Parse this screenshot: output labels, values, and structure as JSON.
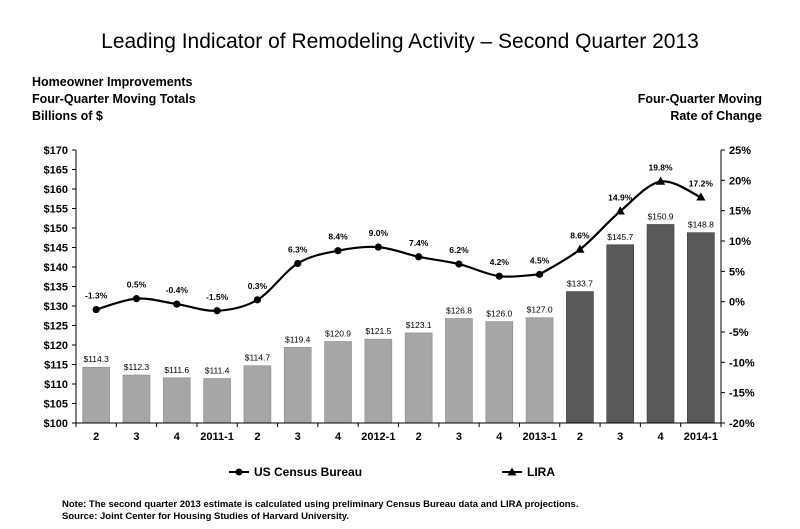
{
  "chart_data": {
    "type": "bar+line",
    "title": "Leading Indicator of Remodeling Activity – Second Quarter 2013",
    "left_axis_title": [
      "Homeowner Improvements",
      "Four-Quarter Moving Totals",
      "Billions of $"
    ],
    "right_axis_title": [
      "Four-Quarter Moving",
      "Rate of Change"
    ],
    "categories": [
      "2",
      "3",
      "4",
      "2011-1",
      "2",
      "3",
      "4",
      "2012-1",
      "2",
      "3",
      "4",
      "2013-1",
      "2",
      "3",
      "4",
      "2014-1"
    ],
    "bar_values": [
      114.3,
      112.3,
      111.6,
      111.4,
      114.7,
      119.4,
      120.9,
      121.5,
      123.1,
      126.8,
      126.0,
      127.0,
      133.7,
      145.7,
      150.9,
      148.8
    ],
    "bar_labels": [
      "$114.3",
      "$112.3",
      "$111.6",
      "$111.4",
      "$114.7",
      "$119.4",
      "$120.9",
      "$121.5",
      "$123.1",
      "$126.8",
      "$126.0",
      "$127.0",
      "$133.7",
      "$145.7",
      "$150.9",
      "$148.8"
    ],
    "series": [
      {
        "name": "US Census Bureau",
        "values": [
          -1.3,
          0.5,
          -0.4,
          -1.5,
          0.3,
          6.3,
          8.4,
          9.0,
          7.4,
          6.2,
          4.2,
          4.5,
          null,
          null,
          null,
          null
        ],
        "labels": [
          "-1.3%",
          "0.5%",
          "-0.4%",
          "-1.5%",
          "0.3%",
          "6.3%",
          "8.4%",
          "9.0%",
          "7.4%",
          "6.2%",
          "4.2%",
          "4.5%",
          "",
          "",
          "",
          ""
        ]
      },
      {
        "name": "LIRA",
        "values": [
          null,
          null,
          null,
          null,
          null,
          null,
          null,
          null,
          null,
          null,
          null,
          4.5,
          8.6,
          14.9,
          19.8,
          17.2
        ],
        "labels": [
          "",
          "",
          "",
          "",
          "",
          "",
          "",
          "",
          "",
          "",
          "",
          "",
          "8.6%",
          "14.9%",
          "19.8%",
          "17.2%"
        ]
      }
    ],
    "left_ylim": [
      100,
      170
    ],
    "left_ticks": [
      "$100",
      "$105",
      "$110",
      "$115",
      "$120",
      "$125",
      "$130",
      "$135",
      "$140",
      "$145",
      "$150",
      "$155",
      "$160",
      "$165",
      "$170"
    ],
    "right_ylim": [
      -20,
      25
    ],
    "right_ticks": [
      "25%",
      "20%",
      "15%",
      "10%",
      "5%",
      "0%",
      "-5%",
      "-10%",
      "-15%",
      "-20%"
    ],
    "colors": {
      "bar_census": "#a6a6a6",
      "bar_lira": "#595959",
      "line": "#000000"
    },
    "grid": false,
    "legend_position": "bottom"
  },
  "notes": [
    "Note: The second quarter 2013 estimate is calculated using preliminary Census Bureau data and LIRA projections.",
    "Source: Joint Center for Housing Studies of Harvard University."
  ]
}
